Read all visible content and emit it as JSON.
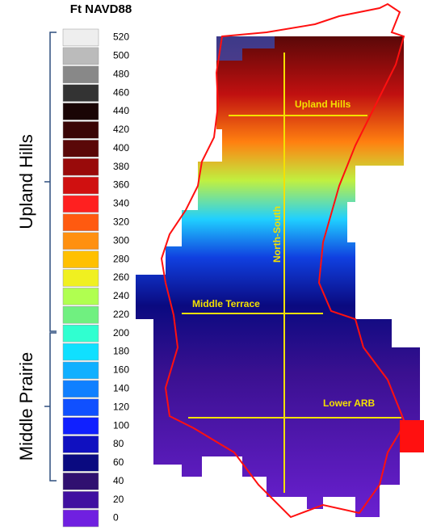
{
  "legend": {
    "title": "Ft NAVD88",
    "entries": [
      {
        "label": "520",
        "color": "#eeeeee"
      },
      {
        "label": "500",
        "color": "#bbbbbb"
      },
      {
        "label": "480",
        "color": "#888888"
      },
      {
        "label": "460",
        "color": "#333333"
      },
      {
        "label": "440",
        "color": "#1a0505"
      },
      {
        "label": "420",
        "color": "#3a0505"
      },
      {
        "label": "400",
        "color": "#5a0808"
      },
      {
        "label": "380",
        "color": "#990a0a"
      },
      {
        "label": "360",
        "color": "#d01010"
      },
      {
        "label": "340",
        "color": "#ff2020"
      },
      {
        "label": "320",
        "color": "#ff5a10"
      },
      {
        "label": "300",
        "color": "#ff9010"
      },
      {
        "label": "280",
        "color": "#ffc000"
      },
      {
        "label": "260",
        "color": "#f0f020"
      },
      {
        "label": "240",
        "color": "#b0ff50"
      },
      {
        "label": "220",
        "color": "#70f080"
      },
      {
        "label": "200",
        "color": "#30ffd0"
      },
      {
        "label": "180",
        "color": "#10e0ff"
      },
      {
        "label": "160",
        "color": "#10b0ff"
      },
      {
        "label": "140",
        "color": "#1080ff"
      },
      {
        "label": "120",
        "color": "#1050ff"
      },
      {
        "label": "100",
        "color": "#1020ff"
      },
      {
        "label": "80",
        "color": "#1010c0"
      },
      {
        "label": "60",
        "color": "#0a0a80"
      },
      {
        "label": "40",
        "color": "#301070"
      },
      {
        "label": "20",
        "color": "#4010a0"
      },
      {
        "label": "0",
        "color": "#7020e0"
      }
    ]
  },
  "zones": [
    "Upland Hills",
    "Middle Prairie"
  ],
  "map": {
    "labels": [
      "Upland Hills",
      "Middle Terrace",
      "Lower ARB",
      "North-South"
    ]
  }
}
